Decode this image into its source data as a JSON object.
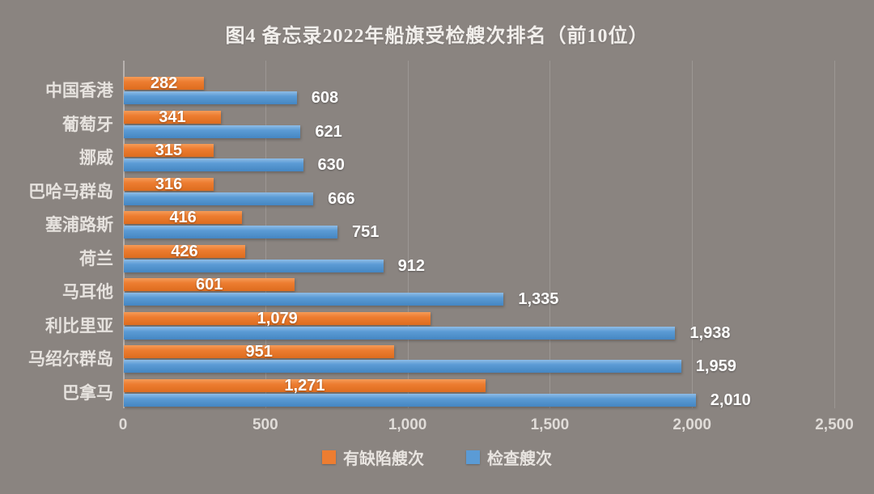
{
  "title": "图4  备忘录2022年船旗受检艘次排名（前10位）",
  "colors": {
    "background": "#8a8480",
    "defect_orange": "#ed7d31",
    "inspect_blue": "#5b9bd5",
    "label_text": "#e6e2de",
    "value_text": "#ffffff"
  },
  "chart_data": {
    "type": "bar",
    "orientation": "horizontal",
    "title": "图4  备忘录2022年船旗受检艘次排名（前10位）",
    "categories": [
      "中国香港",
      "葡萄牙",
      "挪威",
      "巴哈马群岛",
      "塞浦路斯",
      "荷兰",
      "马耳他",
      "利比里亚",
      "马绍尔群岛",
      "巴拿马"
    ],
    "series": [
      {
        "name": "有缺陷艘次",
        "color": "#ed7d31",
        "values": [
          282,
          341,
          315,
          316,
          416,
          426,
          601,
          1079,
          951,
          1271
        ],
        "labels": [
          "282",
          "341",
          "315",
          "316",
          "416",
          "426",
          "601",
          "1,079",
          "951",
          "1,271"
        ]
      },
      {
        "name": "检查艘次",
        "color": "#5b9bd5",
        "values": [
          608,
          621,
          630,
          666,
          751,
          912,
          1335,
          1938,
          1959,
          2010
        ],
        "labels": [
          "608",
          "621",
          "630",
          "666",
          "751",
          "912",
          "1,335",
          "1,938",
          "1,959",
          "2,010"
        ]
      }
    ],
    "x_axis": {
      "tick_labels": [
        "0",
        "500",
        "1,000",
        "1,500",
        "2,000",
        "2,500"
      ],
      "tick_values": [
        0,
        500,
        1000,
        1500,
        2000,
        2500
      ],
      "min": 0,
      "max": 2500
    },
    "grid": true,
    "legend": [
      "有缺陷艘次",
      "检查艘次"
    ],
    "legend_position": "bottom"
  }
}
